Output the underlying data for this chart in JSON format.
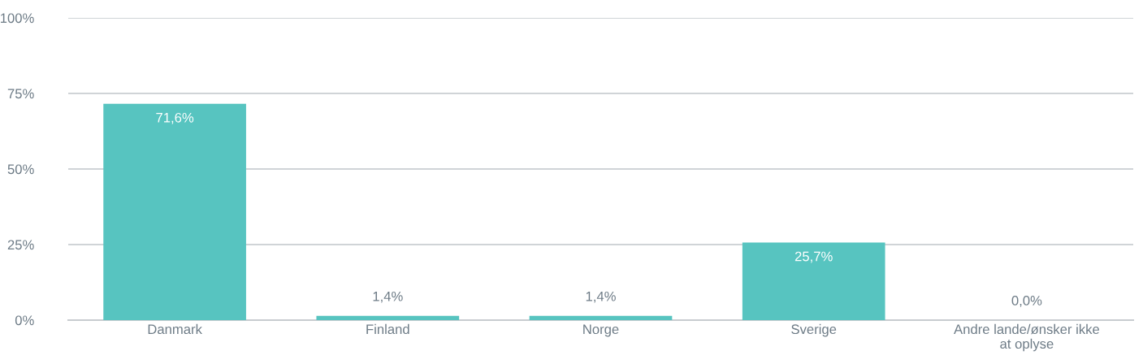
{
  "chart_data": {
    "type": "bar",
    "categories": [
      "Danmark",
      "Finland",
      "Norge",
      "Sverige",
      "Andre lande/ønsker ikke\nat oplyse"
    ],
    "values": [
      71.6,
      1.4,
      1.4,
      25.7,
      0.0
    ],
    "value_labels": [
      "71,6%",
      "1,4%",
      "1,4%",
      "25,7%",
      "0,0%"
    ],
    "color": "#57c4c0",
    "ylim": [
      0,
      100
    ],
    "yticks": [
      {
        "value": 0,
        "label": "0%"
      },
      {
        "value": 25,
        "label": "25%"
      },
      {
        "value": 50,
        "label": "50%"
      },
      {
        "value": 75,
        "label": "75%"
      },
      {
        "value": 100,
        "label": "100%"
      }
    ],
    "grid": "y",
    "legend": false
  }
}
